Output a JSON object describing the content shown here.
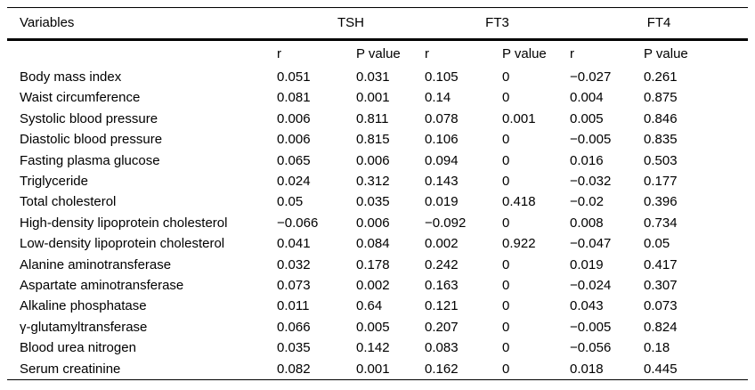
{
  "table": {
    "variables_header": "Variables",
    "groups": [
      "TSH",
      "FT3",
      "FT4"
    ],
    "subheaders": [
      "r",
      "P value",
      "r",
      "P value",
      "r",
      "P value"
    ],
    "rows": [
      {
        "variable": "Body mass index",
        "values": [
          "0.051",
          "0.031",
          "0.105",
          "0",
          "−0.027",
          "0.261"
        ]
      },
      {
        "variable": "Waist circumference",
        "values": [
          "0.081",
          "0.001",
          "0.14",
          "0",
          "0.004",
          "0.875"
        ]
      },
      {
        "variable": "Systolic blood pressure",
        "values": [
          "0.006",
          "0.811",
          "0.078",
          "0.001",
          "0.005",
          "0.846"
        ]
      },
      {
        "variable": "Diastolic blood pressure",
        "values": [
          "0.006",
          "0.815",
          "0.106",
          "0",
          "−0.005",
          "0.835"
        ]
      },
      {
        "variable": "Fasting plasma glucose",
        "values": [
          "0.065",
          "0.006",
          "0.094",
          "0",
          "0.016",
          "0.503"
        ]
      },
      {
        "variable": "Triglyceride",
        "values": [
          "0.024",
          "0.312",
          "0.143",
          "0",
          "−0.032",
          "0.177"
        ]
      },
      {
        "variable": "Total cholesterol",
        "values": [
          "0.05",
          "0.035",
          "0.019",
          "0.418",
          "−0.02",
          "0.396"
        ]
      },
      {
        "variable": "High-density lipoprotein cholesterol",
        "values": [
          "−0.066",
          "0.006",
          "−0.092",
          "0",
          "0.008",
          "0.734"
        ]
      },
      {
        "variable": "Low-density lipoprotein cholesterol",
        "values": [
          "0.041",
          "0.084",
          "0.002",
          "0.922",
          "−0.047",
          "0.05"
        ]
      },
      {
        "variable": "Alanine aminotransferase",
        "values": [
          "0.032",
          "0.178",
          "0.242",
          "0",
          "0.019",
          "0.417"
        ]
      },
      {
        "variable": "Aspartate aminotransferase",
        "values": [
          "0.073",
          "0.002",
          "0.163",
          "0",
          "−0.024",
          "0.307"
        ]
      },
      {
        "variable": "Alkaline phosphatase",
        "values": [
          "0.011",
          "0.64",
          "0.121",
          "0",
          "0.043",
          "0.073"
        ]
      },
      {
        "variable": "γ-glutamyltransferase",
        "values": [
          "0.066",
          "0.005",
          "0.207",
          "0",
          "−0.005",
          "0.824"
        ]
      },
      {
        "variable": "Blood urea nitrogen",
        "values": [
          "0.035",
          "0.142",
          "0.083",
          "0",
          "−0.056",
          "0.18"
        ]
      },
      {
        "variable": "Serum creatinine",
        "values": [
          "0.082",
          "0.001",
          "0.162",
          "0",
          "0.018",
          "0.445"
        ]
      }
    ]
  }
}
